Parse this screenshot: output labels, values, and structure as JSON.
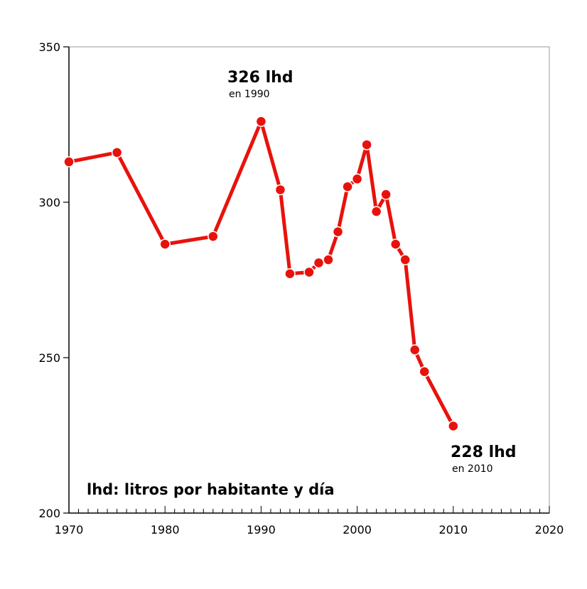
{
  "chart_data": {
    "type": "line",
    "title": "",
    "xlabel": "",
    "ylabel": "",
    "xlim": [
      1970,
      2020
    ],
    "ylim": [
      200,
      350
    ],
    "x_ticks": [
      1970,
      1980,
      1990,
      2000,
      2010,
      2020
    ],
    "y_ticks": [
      200,
      250,
      300,
      350
    ],
    "x_tick_labels": [
      "1970",
      "1980",
      "1990",
      "2000",
      "2010",
      "2020"
    ],
    "y_tick_labels": [
      "200",
      "250",
      "300",
      "350"
    ],
    "grid": false,
    "series": [
      {
        "color": "#e8120c",
        "x": [
          1970,
          1975,
          1980,
          1985,
          1990,
          1992,
          1993,
          1995,
          1996,
          1997,
          1998,
          1999,
          2000,
          2001,
          2002,
          2003,
          2004,
          2005,
          2006,
          2007,
          2010
        ],
        "y": [
          313,
          316,
          286.5,
          289,
          326,
          304,
          277,
          277.5,
          280.5,
          281.5,
          290.5,
          305,
          307.5,
          318.5,
          297,
          302.5,
          286.5,
          281.5,
          252.5,
          245.5,
          228
        ]
      }
    ],
    "annotations": [
      {
        "title": "326 lhd",
        "subtitle": "en 1990"
      },
      {
        "title": "228 lhd",
        "subtitle": "en 2010"
      }
    ],
    "note": "lhd: litros por habitante y día"
  }
}
